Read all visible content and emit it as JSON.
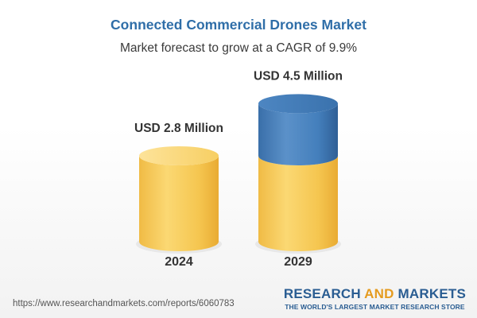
{
  "chart_data": {
    "type": "bar",
    "title": "Connected Commercial Drones Market",
    "subtitle": "Market forecast to grow at a CAGR of 9.9%",
    "categories": [
      "2024",
      "2029"
    ],
    "values": [
      2.8,
      4.5
    ],
    "value_labels": [
      "USD 2.8 Million",
      "USD 4.5 Million"
    ],
    "unit": "USD Million",
    "colors": {
      "base": "#f3c54f",
      "growth": "#3f79b4",
      "title": "#2f6ea8",
      "brand_and": "#e59b1f"
    }
  },
  "footer": {
    "url": "https://www.researchandmarkets.com/reports/6060783",
    "brand_part1": "RESEARCH ",
    "brand_part2": "AND",
    "brand_part3": " MARKETS",
    "tagline": "THE WORLD'S LARGEST MARKET RESEARCH STORE"
  }
}
